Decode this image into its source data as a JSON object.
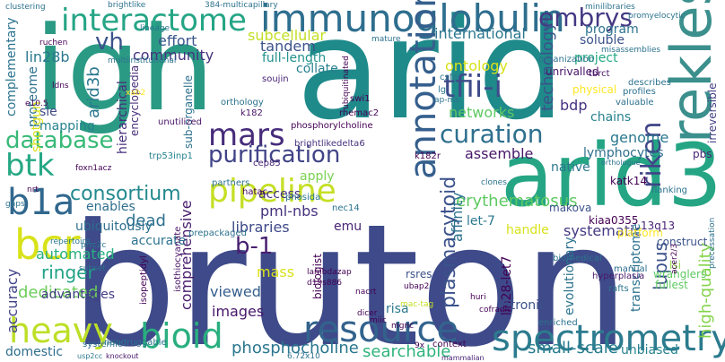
{
  "background": "#ffffff",
  "palette": {
    "deep_purple": "#440154",
    "indigo": "#3b528b",
    "blue": "#31688e",
    "teal": "#21918c",
    "green": "#35b779",
    "lime": "#90d743",
    "yellow": "#fde725"
  },
  "words": [
    {
      "text": "bruton",
      "color": "#3e4a89"
    },
    {
      "text": "arid",
      "color": "#1f8a8a"
    },
    {
      "text": "igh",
      "color": "#2b9a84"
    },
    {
      "text": "arid3",
      "color": "#25a584"
    },
    {
      "text": "immunoglobulin",
      "color": "#2e6e8e"
    },
    {
      "text": "interactome",
      "color": "#25a585"
    },
    {
      "text": "rekles",
      "color": "#3b8f8c"
    },
    {
      "text": "annotation",
      "color": "#355f8d"
    },
    {
      "text": "resource",
      "color": "#33638d"
    },
    {
      "text": "spectrometry",
      "color": "#2c7b8e"
    },
    {
      "text": "pipeline",
      "color": "#c5df24"
    },
    {
      "text": "bioid",
      "color": "#29af7f"
    },
    {
      "text": "heavy",
      "color": "#bddf26"
    },
    {
      "text": "b1a",
      "color": "#31688e"
    },
    {
      "text": "bcr",
      "color": "#d8e219"
    },
    {
      "text": "btk",
      "color": "#26a884"
    },
    {
      "text": "mars",
      "color": "#472c7a"
    },
    {
      "text": "vh",
      "color": "#3b528b"
    },
    {
      "text": "embrys",
      "color": "#443983"
    },
    {
      "text": "tfii-i",
      "color": "#3e4c8a"
    },
    {
      "text": "curation",
      "color": "#2e6f8e"
    },
    {
      "text": "riken",
      "color": "#414487"
    },
    {
      "text": "purification",
      "color": "#414487"
    },
    {
      "text": "database",
      "color": "#38b977"
    },
    {
      "text": "consortium",
      "color": "#23898e"
    },
    {
      "text": "ontology",
      "color": "#d8e219"
    },
    {
      "text": "networks",
      "color": "#5ec962"
    },
    {
      "text": "erythematosus",
      "color": "#5ec962"
    },
    {
      "text": "plasmacytoid",
      "color": "#3b528b"
    },
    {
      "text": "lupus",
      "color": "#3b528b"
    },
    {
      "text": "b-1",
      "color": "#481f70"
    },
    {
      "text": "pml-nbs",
      "color": "#46327e"
    },
    {
      "text": "phosphocholine",
      "color": "#2a768e"
    },
    {
      "text": "searchable",
      "color": "#2fb47c"
    },
    {
      "text": "small-scale",
      "color": "#287c8e"
    },
    {
      "text": "high-quality",
      "color": "#84d44b"
    },
    {
      "text": "ringer",
      "color": "#20a386"
    },
    {
      "text": "dedicated",
      "color": "#6ccd5a"
    },
    {
      "text": "automated",
      "color": "#29af7f"
    },
    {
      "text": "accuracy",
      "color": "#414487"
    },
    {
      "text": "comprehensive",
      "color": "#481b6d"
    },
    {
      "text": "accurate",
      "color": "#2c728e"
    },
    {
      "text": "dead",
      "color": "#2d708e"
    },
    {
      "text": "libraries",
      "color": "#3e4a89"
    },
    {
      "text": "images",
      "color": "#481769"
    },
    {
      "text": "viewed",
      "color": "#355f8d"
    },
    {
      "text": "mass",
      "color": "#d8e219"
    },
    {
      "text": "genome",
      "color": "#2a788e"
    },
    {
      "text": "systematic",
      "color": "#443983"
    },
    {
      "text": "let-7",
      "color": "#2a788e"
    },
    {
      "text": "technology",
      "color": "#3b528b"
    },
    {
      "text": "bdp",
      "color": "#46327e"
    },
    {
      "text": "lymphocytes",
      "color": "#2e6e8e"
    },
    {
      "text": "affinity",
      "color": "#2c728e"
    },
    {
      "text": "assemble",
      "color": "#48186a"
    },
    {
      "text": "international",
      "color": "#2a768e"
    },
    {
      "text": "subcellular",
      "color": "#c2df23"
    },
    {
      "text": "tandem",
      "color": "#3b528b"
    },
    {
      "text": "community",
      "color": "#46337f"
    },
    {
      "text": "effort",
      "color": "#39568c"
    },
    {
      "text": "full-length",
      "color": "#21918c"
    },
    {
      "text": "arid3b",
      "color": "#2a788e"
    },
    {
      "text": "lin28b",
      "color": "#2a788e"
    },
    {
      "text": "proteome",
      "color": "#2c738e"
    },
    {
      "text": "sle",
      "color": "#3e4989"
    },
    {
      "text": "shotgun",
      "color": "#d8e219"
    },
    {
      "text": "mapping",
      "color": "#26828e"
    },
    {
      "text": "complementary",
      "color": "#2c738e"
    },
    {
      "text": "enables",
      "color": "#2e6e8e"
    },
    {
      "text": "ubiquitously",
      "color": "#2e6e8e"
    },
    {
      "text": "advantages",
      "color": "#433e85"
    },
    {
      "text": "domestic",
      "color": "#2e6e8e"
    },
    {
      "text": "apply",
      "color": "#7ad151"
    },
    {
      "text": "access",
      "color": "#46327e"
    },
    {
      "text": "collate",
      "color": "#27808e"
    },
    {
      "text": "transcriptome",
      "color": "#2c728e"
    },
    {
      "text": "evolutionary",
      "color": "#2c738e"
    },
    {
      "text": "lin28-let7",
      "color": "#440154"
    },
    {
      "text": "intronic",
      "color": "#3b528b"
    },
    {
      "text": "unbiased",
      "color": "#26828e"
    },
    {
      "text": "hierarchical",
      "color": "#472d7b"
    },
    {
      "text": "encyclopedia",
      "color": "#472d7b"
    },
    {
      "text": "sub-organelle",
      "color": "#2c728e"
    },
    {
      "text": "emu",
      "color": "#482374"
    },
    {
      "text": "handle",
      "color": "#d8e219"
    },
    {
      "text": "native",
      "color": "#2a788e"
    },
    {
      "text": "soluble",
      "color": "#3b528b"
    },
    {
      "text": "project",
      "color": "#22a884"
    },
    {
      "text": "program",
      "color": "#2c728e"
    },
    {
      "text": "chains",
      "color": "#26828e"
    },
    {
      "text": "katk14",
      "color": "#440154"
    },
    {
      "text": "irreversible",
      "color": "#433e85"
    },
    {
      "text": "pbs",
      "color": "#482374"
    },
    {
      "text": "lsi",
      "color": "#8ed645"
    },
    {
      "text": "biologist",
      "color": "#440154"
    },
    {
      "text": "risa",
      "color": "#2a788e"
    },
    {
      "text": "rsres",
      "color": "#3b528b"
    },
    {
      "text": "physical",
      "color": "#fde725"
    },
    {
      "text": "unrivalled",
      "color": "#481467"
    },
    {
      "text": "organization",
      "color": "#2c728e"
    },
    {
      "text": "platform",
      "color": "#fde725"
    },
    {
      "text": "construct",
      "color": "#3b528b"
    },
    {
      "text": "kiaa0355",
      "color": "#440154"
    },
    {
      "text": "13q13",
      "color": "#482374"
    },
    {
      "text": "wranglers",
      "color": "#5ec962"
    },
    {
      "text": "fullest",
      "color": "#5ec962"
    },
    {
      "text": "makova",
      "color": "#3b528b"
    },
    {
      "text": "manual",
      "color": "#2e6e8e"
    },
    {
      "text": "rafts",
      "color": "#2a788e"
    },
    {
      "text": "hyperplasia",
      "color": "#48186a"
    },
    {
      "text": "biomedical",
      "color": "#2c728e"
    },
    {
      "text": "mammalian",
      "color": "#482374"
    },
    {
      "text": "context",
      "color": "#440154"
    },
    {
      "text": "enriched",
      "color": "#2c728e"
    },
    {
      "text": "soujin",
      "color": "#482374"
    },
    {
      "text": "swi1",
      "color": "#440154"
    },
    {
      "text": "rhemac2",
      "color": "#440154"
    },
    {
      "text": "csfe",
      "color": "#2a788e"
    },
    {
      "text": "lg",
      "color": "#2a788e"
    },
    {
      "text": "tbrct",
      "color": "#481467"
    },
    {
      "text": "describes",
      "color": "#2c728e"
    },
    {
      "text": "valuable",
      "color": "#2c728e"
    },
    {
      "text": "profiles",
      "color": "#2c728e"
    },
    {
      "text": "flanking",
      "color": "#2c728e"
    },
    {
      "text": "k182r",
      "color": "#440154"
    },
    {
      "text": "brightlikedelta6",
      "color": "#46327e"
    },
    {
      "text": "phosphorylcholine",
      "color": "#440154"
    },
    {
      "text": "cep85",
      "color": "#482374"
    },
    {
      "text": "k182",
      "color": "#481467"
    },
    {
      "text": "orthology",
      "color": "#2c728e"
    },
    {
      "text": "trp53inp1",
      "color": "#26828e"
    },
    {
      "text": "unutilized",
      "color": "#481467"
    },
    {
      "text": "partners",
      "color": "#2c728e"
    },
    {
      "text": "hatac",
      "color": "#440154"
    },
    {
      "text": "phosida",
      "color": "#2a788e"
    },
    {
      "text": "nec14",
      "color": "#2c728e"
    },
    {
      "text": "prepackaged",
      "color": "#2c728e"
    },
    {
      "text": "isothiocyanate",
      "color": "#481467"
    },
    {
      "text": "nondruggable",
      "color": "#2c728e"
    },
    {
      "text": "isopeptidyl",
      "color": "#440154"
    },
    {
      "text": "systemic",
      "color": "#2c728e"
    },
    {
      "text": "usp2cc",
      "color": "#2a788e"
    },
    {
      "text": "knockout",
      "color": "#481467"
    },
    {
      "text": "6.72x10",
      "color": "#2c728e"
    },
    {
      "text": "subset",
      "color": "#2c728e"
    },
    {
      "text": "prrc2c",
      "color": "#2a788e"
    },
    {
      "text": "repertoire",
      "color": "#2a788e"
    },
    {
      "text": "gaps",
      "color": "#2c728e"
    },
    {
      "text": "foxn1acz",
      "color": "#440154"
    },
    {
      "text": "nrt",
      "color": "#440154"
    },
    {
      "text": "e10.5",
      "color": "#440154"
    },
    {
      "text": "ldns",
      "color": "#440154"
    },
    {
      "text": "ruchen",
      "color": "#440154"
    },
    {
      "text": "clustering",
      "color": "#2c728e"
    },
    {
      "text": "brightlike",
      "color": "#2c728e"
    },
    {
      "text": "lineage",
      "color": "#2c728e"
    },
    {
      "text": "multiinstitutional",
      "color": "#2c728e"
    },
    {
      "text": "ubiquitinated",
      "color": "#440154"
    },
    {
      "text": "mature",
      "color": "#2c728e"
    },
    {
      "text": "minilibraries",
      "color": "#2c728e"
    },
    {
      "text": "promyelocytic",
      "color": "#2c728e"
    },
    {
      "text": "misassemblies",
      "color": "#2c728e"
    },
    {
      "text": "clones",
      "color": "#2c728e"
    },
    {
      "text": "lambdazap",
      "color": "#440154"
    },
    {
      "text": "d19s886",
      "color": "#440154"
    },
    {
      "text": "nacrt",
      "color": "#440154"
    },
    {
      "text": "dicer",
      "color": "#440154"
    },
    {
      "text": "miic",
      "color": "#440154"
    },
    {
      "text": "mgnc",
      "color": "#440154"
    },
    {
      "text": "xab2",
      "color": "#fde725"
    },
    {
      "text": "ap-ms",
      "color": "#2c728e"
    },
    {
      "text": "mac-tag",
      "color": "#c2df23"
    },
    {
      "text": "ubap2",
      "color": "#440154"
    },
    {
      "text": "acer2/3",
      "color": "#440154"
    },
    {
      "text": "orthologue",
      "color": "#2c728e"
    },
    {
      "text": "9x",
      "color": "#440154"
    },
    {
      "text": "huri",
      "color": "#440154"
    },
    {
      "text": "cofradic",
      "color": "#440154"
    },
    {
      "text": "precessation",
      "color": "#2c728e"
    },
    {
      "text": "384-multicapillary",
      "color": "#2c728e"
    }
  ]
}
